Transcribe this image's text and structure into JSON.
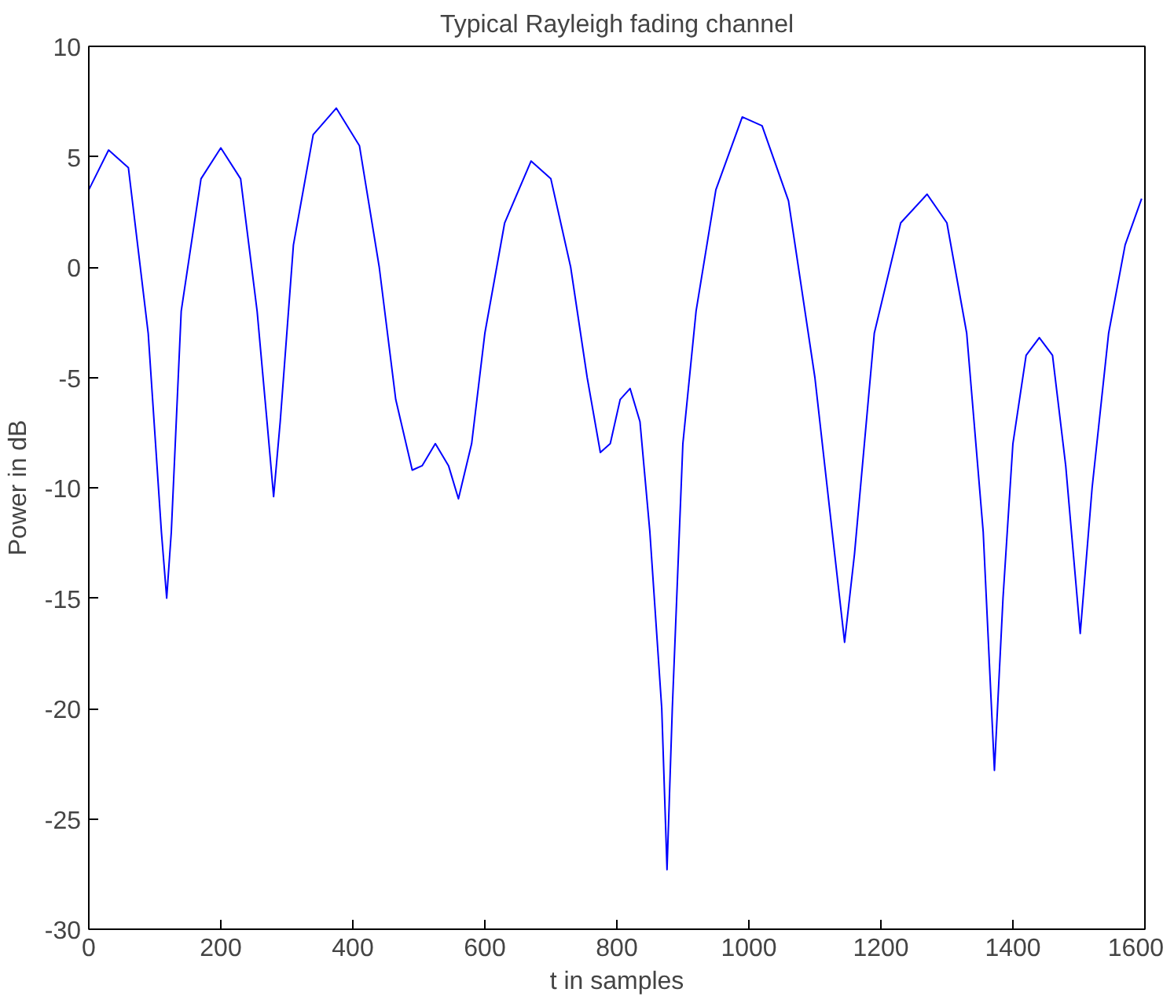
{
  "chart_data": {
    "type": "line",
    "title": "Typical Rayleigh fading channel",
    "xlabel": "t in samples",
    "ylabel": "Power in dB",
    "x": [
      0,
      30,
      60,
      90,
      110,
      118,
      125,
      140,
      170,
      200,
      230,
      255,
      270,
      280,
      290,
      310,
      340,
      375,
      410,
      440,
      465,
      490,
      505,
      525,
      545,
      560,
      580,
      600,
      630,
      670,
      700,
      730,
      755,
      775,
      790,
      805,
      820,
      835,
      850,
      868,
      876,
      884,
      900,
      920,
      950,
      990,
      1020,
      1060,
      1100,
      1130,
      1145,
      1160,
      1190,
      1230,
      1270,
      1300,
      1330,
      1355,
      1372,
      1385,
      1400,
      1420,
      1440,
      1460,
      1480,
      1502,
      1520,
      1545,
      1570,
      1595
    ],
    "series": [
      {
        "color": "#0000ff",
        "values": [
          3.5,
          5.3,
          4.5,
          -3,
          -12,
          -15,
          -12,
          -2,
          4,
          5.4,
          4,
          -2,
          -7,
          -10.4,
          -7,
          1,
          6,
          7.2,
          5.5,
          0,
          -6,
          -9.2,
          -9,
          -8,
          -9,
          -10.5,
          -8,
          -3,
          2,
          4.8,
          4,
          0,
          -5,
          -8.4,
          -8,
          -6,
          -5.5,
          -7,
          -12,
          -20,
          -27.3,
          -20,
          -8,
          -2,
          3.5,
          6.8,
          6.4,
          3,
          -5,
          -13,
          -17,
          -13,
          -3,
          2,
          3.3,
          2,
          -3,
          -12,
          -22.8,
          -15,
          -8,
          -4,
          -3.2,
          -4,
          -9,
          -16.6,
          -10,
          -3,
          1,
          3.1
        ]
      }
    ],
    "xlim": [
      0,
      1600
    ],
    "ylim": [
      -30,
      10
    ],
    "xticks": [
      0,
      200,
      400,
      600,
      800,
      1000,
      1200,
      1400,
      1600
    ],
    "yticks": [
      -30,
      -25,
      -20,
      -15,
      -10,
      -5,
      0,
      5,
      10
    ],
    "grid": false,
    "line_style": "solid"
  }
}
